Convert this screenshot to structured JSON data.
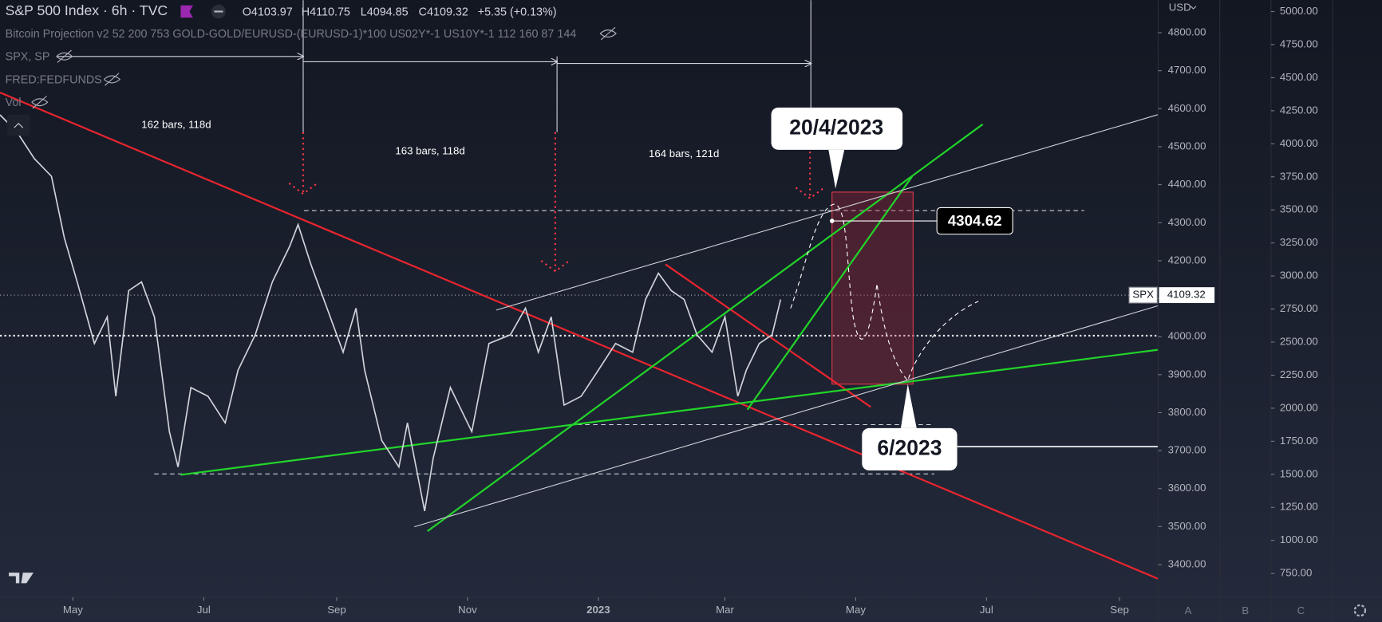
{
  "header": {
    "title": "S&P 500 Index · 6h · TVC",
    "open": "O4103.97",
    "high": "H4110.75",
    "low": "L4094.85",
    "close": "C4109.32",
    "change": "+5.35 (+0.13%)",
    "indicators": [
      "Bitcoin Projection v2 52 200 753 GOLD-GOLD/EURUSD-(EURUSD-1)*100 US02Y*-1 US10Y*-1 112 160 87 144",
      "SPX, SP",
      "FRED:FEDFUNDS",
      "Vol"
    ]
  },
  "chart_data": {
    "type": "line",
    "color": "#d1d4dc",
    "x": [
      86,
      94,
      102,
      110,
      116,
      122,
      130,
      136,
      140,
      146,
      152,
      158,
      165,
      169,
      175,
      183,
      191,
      197,
      205,
      213,
      221,
      225,
      231,
      237,
      246,
      252,
      256,
      264,
      272,
      276,
      284,
      288,
      296,
      306,
      314,
      324,
      331,
      337,
      343,
      349,
      357,
      365,
      373,
      381,
      387,
      393,
      399,
      405,
      411,
      418,
      424,
      430,
      434,
      440,
      446,
      450
    ],
    "values": [
      4584,
      4538,
      4469,
      4422,
      4260,
      4144,
      3982,
      4052,
      3843,
      4121,
      4144,
      4052,
      3750,
      3657,
      3866,
      3843,
      3773,
      3912,
      4005,
      4144,
      4237,
      4295,
      4190,
      4098,
      3959,
      4075,
      3912,
      3727,
      3657,
      3773,
      3541,
      3680,
      3866,
      3750,
      3982,
      4005,
      4075,
      3959,
      4052,
      3820,
      3843,
      3912,
      3982,
      3959,
      4098,
      4167,
      4121,
      4098,
      4005,
      3959,
      4052,
      3843,
      3912,
      3982,
      4005,
      4098
    ],
    "xlim": [
      86,
      626
    ],
    "xticks": [
      {
        "value": 120,
        "label": "May"
      },
      {
        "value": 181,
        "label": "Jul"
      },
      {
        "value": 243,
        "label": "Sep"
      },
      {
        "value": 304,
        "label": "Nov"
      },
      {
        "value": 365,
        "label": "2023"
      },
      {
        "value": 424,
        "label": "Mar"
      },
      {
        "value": 485,
        "label": "May"
      },
      {
        "value": 546,
        "label": "Jul"
      },
      {
        "value": 608,
        "label": "Sep"
      }
    ],
    "ylim": [
      3314,
      4886
    ],
    "yticks": [
      {
        "value": 3400,
        "label": "3400.00"
      },
      {
        "value": 3500,
        "label": "3500.00"
      },
      {
        "value": 3600,
        "label": "3600.00"
      },
      {
        "value": 3700,
        "label": "3700.00"
      },
      {
        "value": 3800,
        "label": "3800.00"
      },
      {
        "value": 3900,
        "label": "3900.00"
      },
      {
        "value": 4000,
        "label": "4000.00"
      },
      {
        "value": 4100,
        "label": "4100.00"
      },
      {
        "value": 4200,
        "label": "4200.00"
      },
      {
        "value": 4300,
        "label": "4300.00"
      },
      {
        "value": 4400,
        "label": "4400.00"
      },
      {
        "value": 4500,
        "label": "4500.00"
      },
      {
        "value": 4600,
        "label": "4600.00"
      },
      {
        "value": 4700,
        "label": "4700.00"
      },
      {
        "value": 4800,
        "label": "4800.00"
      }
    ],
    "y2lim": [
      570,
      5087
    ],
    "y2ticks": [
      {
        "value": 750,
        "label": "750.00"
      },
      {
        "value": 1000,
        "label": "1000.00"
      },
      {
        "value": 1250,
        "label": "1250.00"
      },
      {
        "value": 1500,
        "label": "1500.00"
      },
      {
        "value": 1750,
        "label": "1750.00"
      },
      {
        "value": 2000,
        "label": "2000.00"
      },
      {
        "value": 2250,
        "label": "2250.00"
      },
      {
        "value": 2500,
        "label": "2500.00"
      },
      {
        "value": 2750,
        "label": "2750.00"
      },
      {
        "value": 3000,
        "label": "3000.00"
      },
      {
        "value": 3250,
        "label": "3250.00"
      },
      {
        "value": 3500,
        "label": "3500.00"
      },
      {
        "value": 3750,
        "label": "3750.00"
      },
      {
        "value": 4000,
        "label": "4000.00"
      },
      {
        "value": 4250,
        "label": "4250.00"
      },
      {
        "value": 4500,
        "label": "4500.00"
      },
      {
        "value": 4750,
        "label": "4750.00"
      },
      {
        "value": 5000,
        "label": "5000.00"
      }
    ],
    "currency": "USD",
    "annotations": {
      "intervals": [
        "162 bars, 118d",
        "163 bars, 118d",
        "164 bars, 121d"
      ],
      "callouts": [
        "20/4/2023",
        "6/2023"
      ],
      "price_label": 4304.62,
      "last_price": {
        "label": "SPX",
        "value": 4109.32
      }
    }
  },
  "panes": [
    "A",
    "B",
    "C"
  ]
}
